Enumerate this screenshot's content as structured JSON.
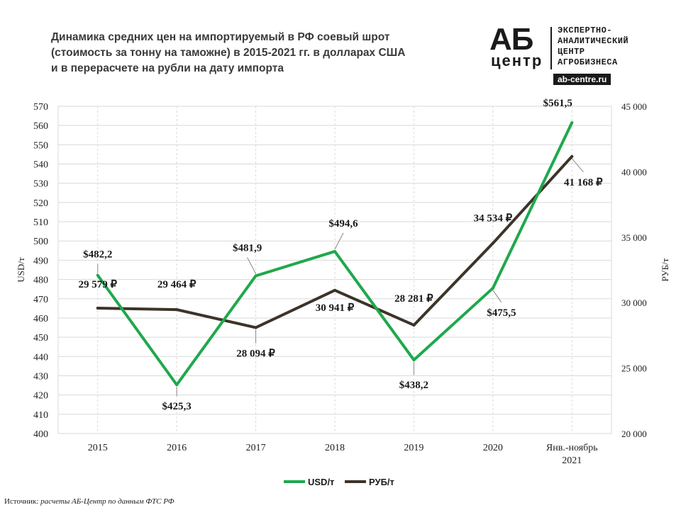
{
  "title": {
    "line1": "Динамика средних цен на импортируемый в РФ соевый шрот",
    "line2": "(стоимость за тонну на таможне) в 2015-2021 гг. в долларах США",
    "line3": "и в перерасчете на рубли на дату импорта"
  },
  "logo": {
    "mark_top": "АБ",
    "mark_bottom": "центр",
    "line1": "ЭКСПЕРТНО-",
    "line2": "АНАЛИТИЧЕСКИЙ",
    "line3": "ЦЕНТР",
    "line4": "АГРОБИЗНЕСА",
    "url": "ab-centre.ru"
  },
  "source": {
    "label": "Источник:",
    "text": "расчеты АБ-Центр по данным ФТС РФ"
  },
  "chart_data": {
    "type": "line",
    "categories": [
      "2015",
      "2016",
      "2017",
      "2018",
      "2019",
      "2020",
      "Янв.-ноябрь 2021"
    ],
    "category_lines": [
      [
        "2015"
      ],
      [
        "2016"
      ],
      [
        "2017"
      ],
      [
        "2018"
      ],
      [
        "2019"
      ],
      [
        "2020"
      ],
      [
        "Янв.-ноябрь",
        "2021"
      ]
    ],
    "ylabel": "USD/т",
    "ylabel_right": "РУБ/т",
    "ylim": [
      400,
      570
    ],
    "ylim_right": [
      20000,
      45000
    ],
    "yticks": [
      "400",
      "410",
      "420",
      "430",
      "440",
      "450",
      "460",
      "470",
      "480",
      "490",
      "500",
      "510",
      "520",
      "530",
      "540",
      "550",
      "560",
      "570"
    ],
    "yticks_right": [
      "20 000",
      "25 000",
      "30 000",
      "35 000",
      "40 000",
      "45 000"
    ],
    "grid": true,
    "legend_position": "bottom",
    "series": [
      {
        "name": "USD/т",
        "axis": "left",
        "color": "#1fa84c",
        "values": [
          482.2,
          425.3,
          481.9,
          494.6,
          438.2,
          475.5,
          561.5
        ],
        "labels": [
          "$482,2",
          "$425,3",
          "$481,9",
          "$494,6",
          "$438,2",
          "$475,5",
          "$561,5"
        ]
      },
      {
        "name": "РУБ/т",
        "axis": "right",
        "color": "#3d3328",
        "values": [
          29579,
          29464,
          28094,
          30941,
          28281,
          34534,
          41168
        ],
        "labels": [
          "29 579 ₽",
          "29 464 ₽",
          "28 094 ₽",
          "30 941 ₽",
          "28 281 ₽",
          "34 534 ₽",
          "41 168 ₽"
        ]
      }
    ]
  }
}
